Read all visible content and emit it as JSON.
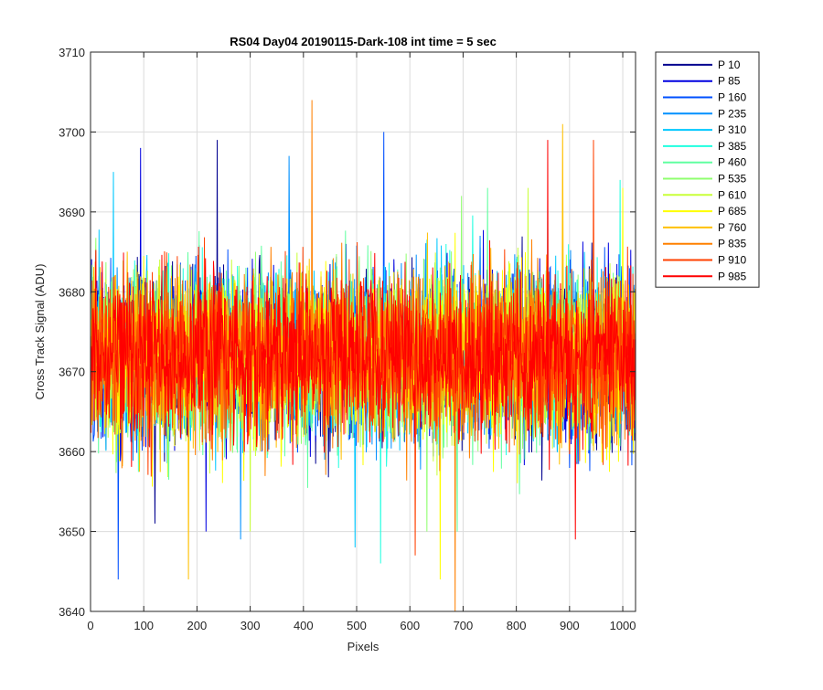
{
  "chart_data": {
    "type": "line",
    "title": "RS04 Day04 20190115-Dark-108 int time = 5 sec",
    "xlabel": "Pixels",
    "ylabel": "Cross Track Signal (ADU)",
    "xlim": [
      0,
      1024
    ],
    "ylim": [
      3640,
      3710
    ],
    "xticks": [
      0,
      100,
      200,
      300,
      400,
      500,
      600,
      700,
      800,
      900,
      1000
    ],
    "yticks": [
      3640,
      3650,
      3660,
      3670,
      3680,
      3690,
      3700,
      3710
    ],
    "grid": true,
    "legend_location": "outside-right-top",
    "n_points_per_series": 1024,
    "noise_center": 3672,
    "series": [
      {
        "name": "P 10",
        "color": "#00008f",
        "min": 3651,
        "max": 3699
      },
      {
        "name": "P 85",
        "color": "#0000e0",
        "min": 3650,
        "max": 3698
      },
      {
        "name": "P 160",
        "color": "#0050ff",
        "min": 3644,
        "max": 3700
      },
      {
        "name": "P 235",
        "color": "#0090ff",
        "min": 3649,
        "max": 3697
      },
      {
        "name": "P 310",
        "color": "#00c8ff",
        "min": 3648,
        "max": 3695
      },
      {
        "name": "P 385",
        "color": "#20ffe0",
        "min": 3646,
        "max": 3694
      },
      {
        "name": "P 460",
        "color": "#60ffa0",
        "min": 3650,
        "max": 3693
      },
      {
        "name": "P 535",
        "color": "#90ff70",
        "min": 3650,
        "max": 3692
      },
      {
        "name": "P 610",
        "color": "#c8ff38",
        "min": 3650,
        "max": 3693
      },
      {
        "name": "P 685",
        "color": "#ffff00",
        "min": 3644,
        "max": 3693
      },
      {
        "name": "P 760",
        "color": "#ffc000",
        "min": 3644,
        "max": 3701
      },
      {
        "name": "P 835",
        "color": "#ff8000",
        "min": 3640,
        "max": 3704
      },
      {
        "name": "P 910",
        "color": "#ff4000",
        "min": 3647,
        "max": 3699
      },
      {
        "name": "P 985",
        "color": "#ff0000",
        "min": 3649,
        "max": 3699
      }
    ]
  }
}
